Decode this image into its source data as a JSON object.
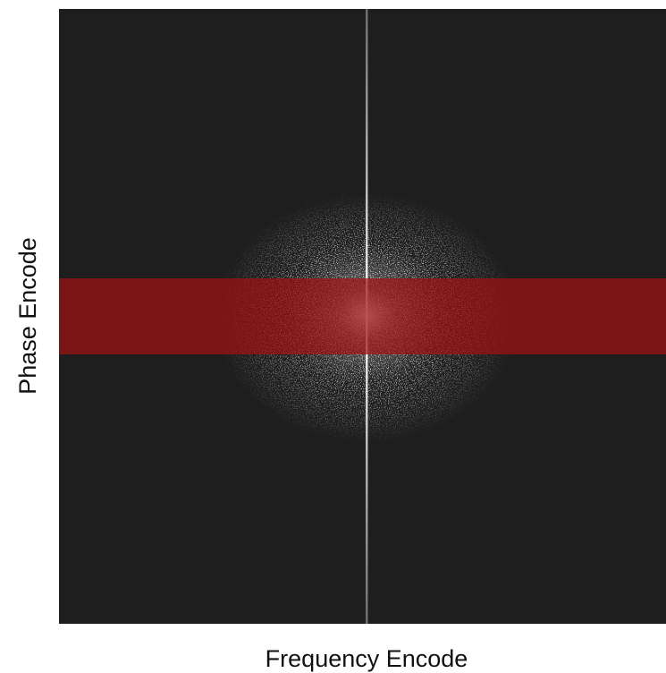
{
  "axes": {
    "x_label": "Frequency Encode",
    "y_label": "Phase Encode"
  }
}
